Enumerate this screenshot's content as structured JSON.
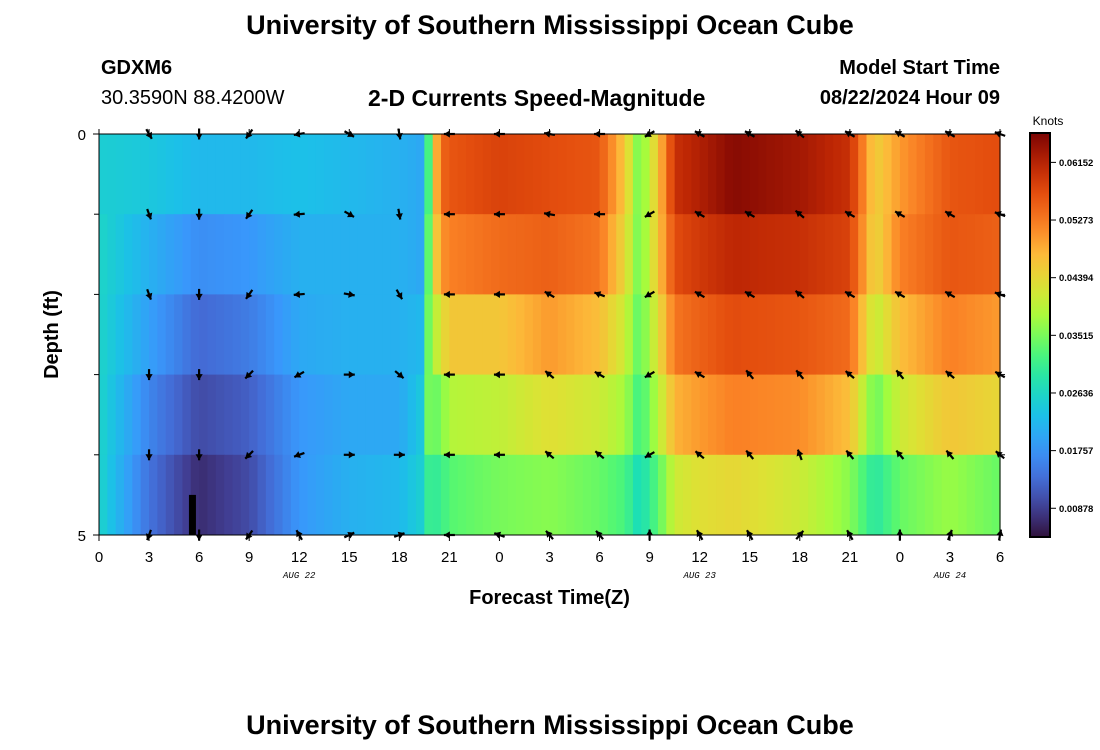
{
  "page": {
    "title": "University of Southern Mississippi Ocean Cube",
    "bottom_title": "University of Southern Mississippi Ocean Cube",
    "station": "GDXM6",
    "coords": "30.3590N  88.4200W",
    "chart_title": "2-D Currents Speed-Magnitude",
    "model_label": "Model Start Time",
    "model_time": "08/22/2024 Hour 09"
  },
  "chart_data": {
    "type": "heatmap",
    "title": "2-D Currents Speed-Magnitude",
    "xlabel": "Forecast Time(Z)",
    "ylabel": "Depth (ft)",
    "x_tick_labels": [
      "0",
      "3",
      "6",
      "9",
      "12",
      "15",
      "18",
      "21",
      "0",
      "3",
      "6",
      "9",
      "12",
      "15",
      "18",
      "21",
      "0",
      "3",
      "6"
    ],
    "x_range_hours": [
      0,
      54
    ],
    "y_range": [
      0,
      5
    ],
    "y_tick_labels": [
      "0",
      "5"
    ],
    "y_minor_ticks": [
      1,
      2,
      3,
      4
    ],
    "date_labels": [
      {
        "label": "AUG 22",
        "hour": 12
      },
      {
        "label": "AUG 23",
        "hour": 36
      },
      {
        "label": "AUG 24",
        "hour": 51
      }
    ],
    "colorbar": {
      "unit": "Knots",
      "min": 0.0044,
      "max": 0.066,
      "tick_values": [
        0.00878,
        0.01757,
        0.02636,
        0.03515,
        0.04394,
        0.05273,
        0.06152
      ],
      "tick_labels": [
        "0.00878",
        "0.01757",
        "0.02636",
        "0.03515",
        "0.04394",
        "0.05273",
        "0.06152"
      ]
    },
    "depth_layers": [
      "0-1 ft",
      "1-2 ft",
      "2-3 ft",
      "3-4 ft",
      "4-5 ft"
    ],
    "speed_keyframes": [
      {
        "hour": 0,
        "layers": [
          0.025,
          0.026,
          0.026,
          0.026,
          0.026
        ]
      },
      {
        "hour": 3,
        "layers": [
          0.024,
          0.021,
          0.019,
          0.016,
          0.014
        ]
      },
      {
        "hour": 6,
        "layers": [
          0.022,
          0.017,
          0.013,
          0.01,
          0.007
        ]
      },
      {
        "hour": 9,
        "layers": [
          0.022,
          0.018,
          0.015,
          0.012,
          0.01
        ]
      },
      {
        "hour": 12,
        "layers": [
          0.023,
          0.021,
          0.02,
          0.018,
          0.018
        ]
      },
      {
        "hour": 15,
        "layers": [
          0.022,
          0.021,
          0.021,
          0.02,
          0.021
        ]
      },
      {
        "hour": 18,
        "layers": [
          0.021,
          0.021,
          0.021,
          0.02,
          0.022
        ]
      },
      {
        "hour": 19.3,
        "layers": [
          0.02,
          0.02,
          0.022,
          0.024,
          0.025
        ]
      },
      {
        "hour": 19.8,
        "layers": [
          0.033,
          0.035,
          0.036,
          0.036,
          0.031
        ]
      },
      {
        "hour": 20.4,
        "layers": [
          0.054,
          0.05,
          0.042,
          0.034,
          0.03
        ]
      },
      {
        "hour": 21,
        "layers": [
          0.056,
          0.052,
          0.046,
          0.039,
          0.033
        ]
      },
      {
        "hour": 24,
        "layers": [
          0.058,
          0.054,
          0.046,
          0.04,
          0.035
        ]
      },
      {
        "hour": 27,
        "layers": [
          0.057,
          0.055,
          0.05,
          0.043,
          0.036
        ]
      },
      {
        "hour": 30,
        "layers": [
          0.056,
          0.053,
          0.047,
          0.041,
          0.034
        ]
      },
      {
        "hour": 31.5,
        "layers": [
          0.046,
          0.044,
          0.041,
          0.038,
          0.032
        ]
      },
      {
        "hour": 32.4,
        "layers": [
          0.034,
          0.034,
          0.033,
          0.031,
          0.027
        ]
      },
      {
        "hour": 33.5,
        "layers": [
          0.046,
          0.046,
          0.043,
          0.039,
          0.033
        ]
      },
      {
        "hour": 34.5,
        "layers": [
          0.06,
          0.057,
          0.053,
          0.048,
          0.041
        ]
      },
      {
        "hour": 36,
        "layers": [
          0.062,
          0.059,
          0.055,
          0.05,
          0.043
        ]
      },
      {
        "hour": 38,
        "layers": [
          0.065,
          0.061,
          0.057,
          0.052,
          0.044
        ]
      },
      {
        "hour": 42,
        "layers": [
          0.063,
          0.06,
          0.056,
          0.051,
          0.041
        ]
      },
      {
        "hour": 45,
        "layers": [
          0.06,
          0.058,
          0.054,
          0.047,
          0.036
        ]
      },
      {
        "hour": 46.5,
        "layers": [
          0.045,
          0.044,
          0.04,
          0.034,
          0.029
        ]
      },
      {
        "hour": 48,
        "layers": [
          0.05,
          0.052,
          0.047,
          0.041,
          0.034
        ]
      },
      {
        "hour": 51,
        "layers": [
          0.056,
          0.056,
          0.052,
          0.046,
          0.037
        ]
      },
      {
        "hour": 54,
        "layers": [
          0.057,
          0.055,
          0.05,
          0.044,
          0.034
        ]
      }
    ],
    "vector_hours": [
      3,
      6,
      9,
      12,
      15,
      18,
      21,
      24,
      27,
      30,
      33,
      36,
      39,
      42,
      45,
      48,
      51,
      54
    ],
    "vector_depths": [
      0,
      1,
      2,
      3,
      4,
      5
    ],
    "vector_direction_keyframes": [
      {
        "hour": 3,
        "deg": [
          150,
          160,
          160,
          180,
          180,
          200
        ]
      },
      {
        "hour": 6,
        "deg": [
          180,
          180,
          180,
          180,
          180,
          180
        ]
      },
      {
        "hour": 9,
        "deg": [
          215,
          215,
          215,
          225,
          225,
          215
        ]
      },
      {
        "hour": 12,
        "deg": [
          260,
          265,
          265,
          240,
          250,
          330
        ]
      },
      {
        "hour": 15,
        "deg": [
          120,
          120,
          100,
          90,
          90,
          65
        ]
      },
      {
        "hour": 18,
        "deg": [
          170,
          170,
          150,
          130,
          90,
          70
        ]
      },
      {
        "hour": 21,
        "deg": [
          270,
          270,
          270,
          270,
          270,
          270
        ]
      },
      {
        "hour": 24,
        "deg": [
          270,
          270,
          270,
          270,
          270,
          290
        ]
      },
      {
        "hour": 27,
        "deg": [
          280,
          280,
          300,
          310,
          310,
          320
        ]
      },
      {
        "hour": 30,
        "deg": [
          270,
          270,
          290,
          300,
          310,
          320
        ]
      },
      {
        "hour": 33,
        "deg": [
          240,
          240,
          240,
          240,
          240,
          0
        ]
      },
      {
        "hour": 36,
        "deg": [
          300,
          300,
          300,
          300,
          310,
          330
        ]
      },
      {
        "hour": 39,
        "deg": [
          300,
          300,
          300,
          320,
          320,
          330
        ]
      },
      {
        "hour": 42,
        "deg": [
          310,
          310,
          310,
          320,
          340,
          40
        ]
      },
      {
        "hour": 45,
        "deg": [
          300,
          300,
          300,
          310,
          320,
          330
        ]
      },
      {
        "hour": 48,
        "deg": [
          300,
          300,
          300,
          320,
          320,
          0
        ]
      },
      {
        "hour": 51,
        "deg": [
          300,
          300,
          300,
          310,
          320,
          20
        ]
      },
      {
        "hour": 54,
        "deg": [
          290,
          290,
          290,
          300,
          310,
          10
        ]
      }
    ],
    "annotations": [
      {
        "type": "black-bar",
        "hour": 5.6,
        "depth_from": 4.5,
        "depth_to": 5
      }
    ]
  }
}
